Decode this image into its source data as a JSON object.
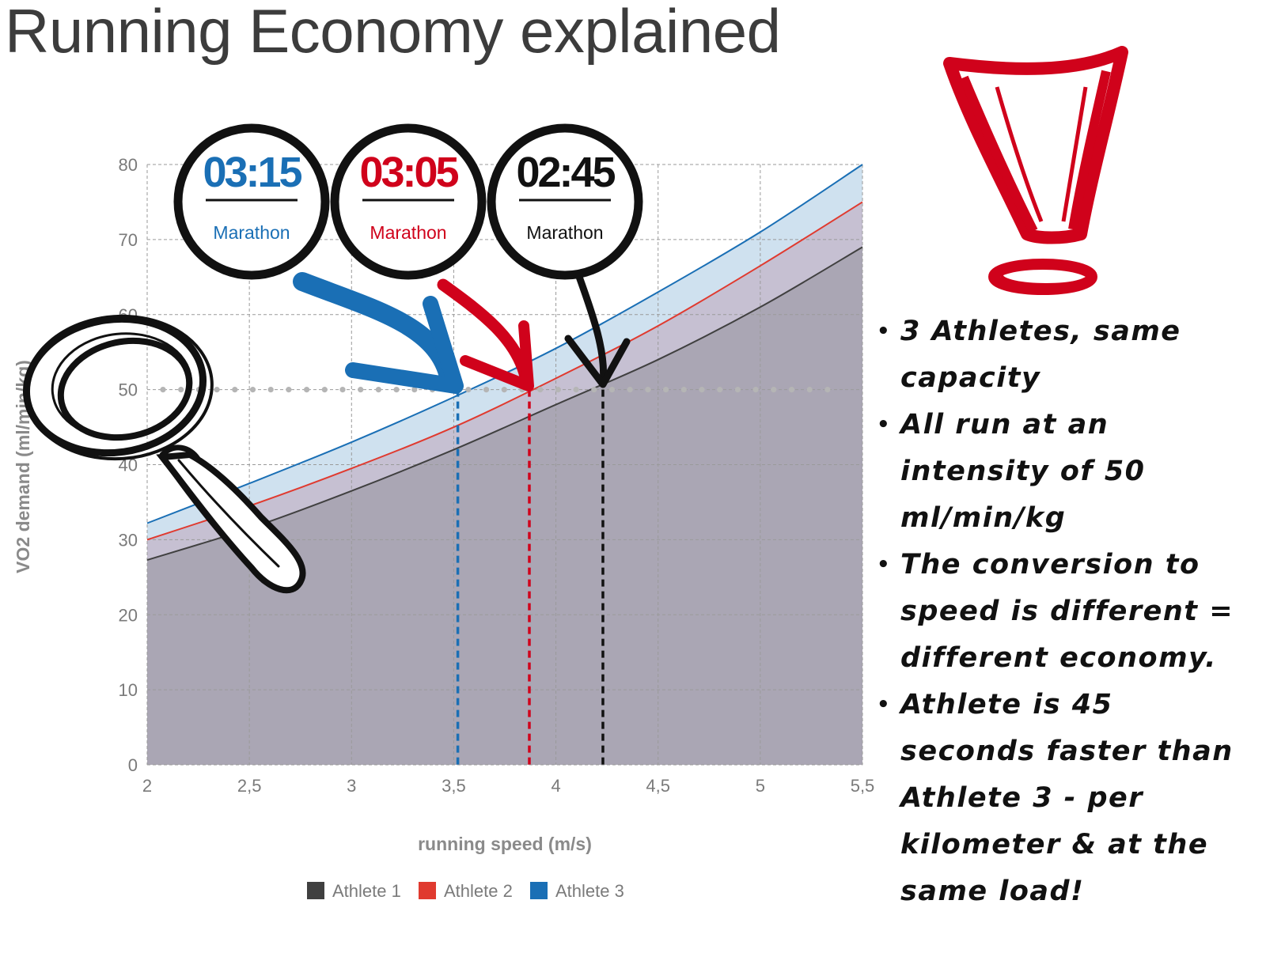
{
  "title": "Running Economy explained",
  "chart_data": {
    "type": "area",
    "xlabel": "running speed (m/s)",
    "ylabel": "VO2 demand (ml/min/kg)",
    "xlim": [
      2,
      5.5
    ],
    "ylim": [
      0,
      80
    ],
    "x_ticks": [
      "2",
      "2,5",
      "3",
      "3,5",
      "4",
      "4,5",
      "5",
      "5,5"
    ],
    "y_ticks": [
      "0",
      "10",
      "20",
      "30",
      "40",
      "50",
      "60",
      "70",
      "80"
    ],
    "grid": true,
    "legend_position": "bottom",
    "x": [
      2,
      2.5,
      3,
      3.5,
      4,
      4.5,
      5,
      5.5
    ],
    "series": [
      {
        "name": "Athlete 1",
        "color": "#404040",
        "fill": "#aaa6b4",
        "values": [
          27.3,
          31.5,
          36.5,
          42,
          48,
          54,
          61,
          69
        ]
      },
      {
        "name": "Athlete 2",
        "color": "#e03a2f",
        "fill": "#c6c0d2",
        "values": [
          30,
          34.5,
          39.5,
          45,
          51.5,
          58.5,
          66.5,
          75
        ]
      },
      {
        "name": "Athlete 3",
        "color": "#1a6fb5",
        "fill": "#cfe1ef",
        "values": [
          32.2,
          37.5,
          43,
          49,
          55.5,
          63,
          71,
          80
        ]
      }
    ],
    "threshold": {
      "y": 50
    },
    "markers": [
      {
        "x": 3.52,
        "color": "#1a6fb5"
      },
      {
        "x": 3.87,
        "color": "#d0021b"
      },
      {
        "x": 4.23,
        "color": "#111111"
      }
    ]
  },
  "badges": [
    {
      "time": "03:15",
      "label": "Marathon",
      "color": "#1a6fb5"
    },
    {
      "time": "03:05",
      "label": "Marathon",
      "color": "#d0021b"
    },
    {
      "time": "02:45",
      "label": "Marathon",
      "color": "#111111"
    }
  ],
  "bullets": [
    "3 Athletes, same capacity",
    "All run at an intensity of 50 ml/min/kg",
    "The conversion to speed is different = different economy.",
    "Athlete is 45 seconds faster than Athlete 3 - per kilometer & at the same load!"
  ],
  "icons": {
    "magnifier": "magnifying-glass-icon",
    "exclamation": "exclamation-mark-icon"
  },
  "colors": {
    "accent_red": "#d0021b",
    "title": "#3c3c3c"
  }
}
